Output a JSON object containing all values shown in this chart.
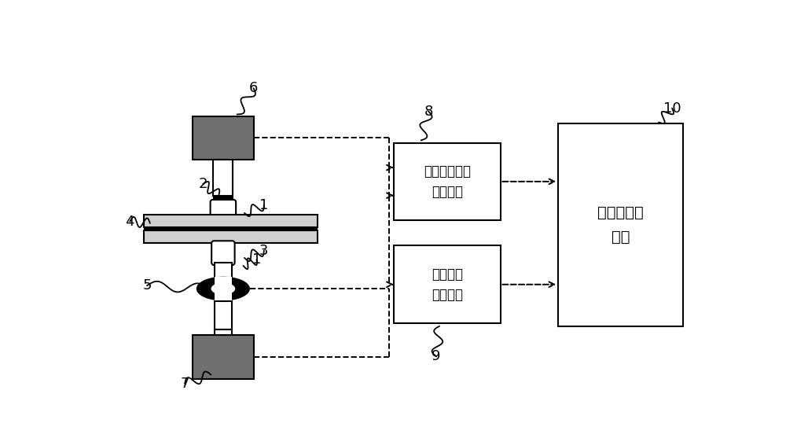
{
  "bg_color": "#ffffff",
  "line_color": "#000000",
  "light_gray": "#d0d0d0",
  "dark_gray": "#707070",
  "box8_label": "本征过程信号\n采集模块",
  "box9_label": "电流信号\n采集模块",
  "box10_label": "计算和分析\n模块",
  "lw_main": 1.5,
  "lw_thick": 2.5,
  "font_size_box": 12,
  "font_size_box10": 14,
  "font_size_label": 13
}
